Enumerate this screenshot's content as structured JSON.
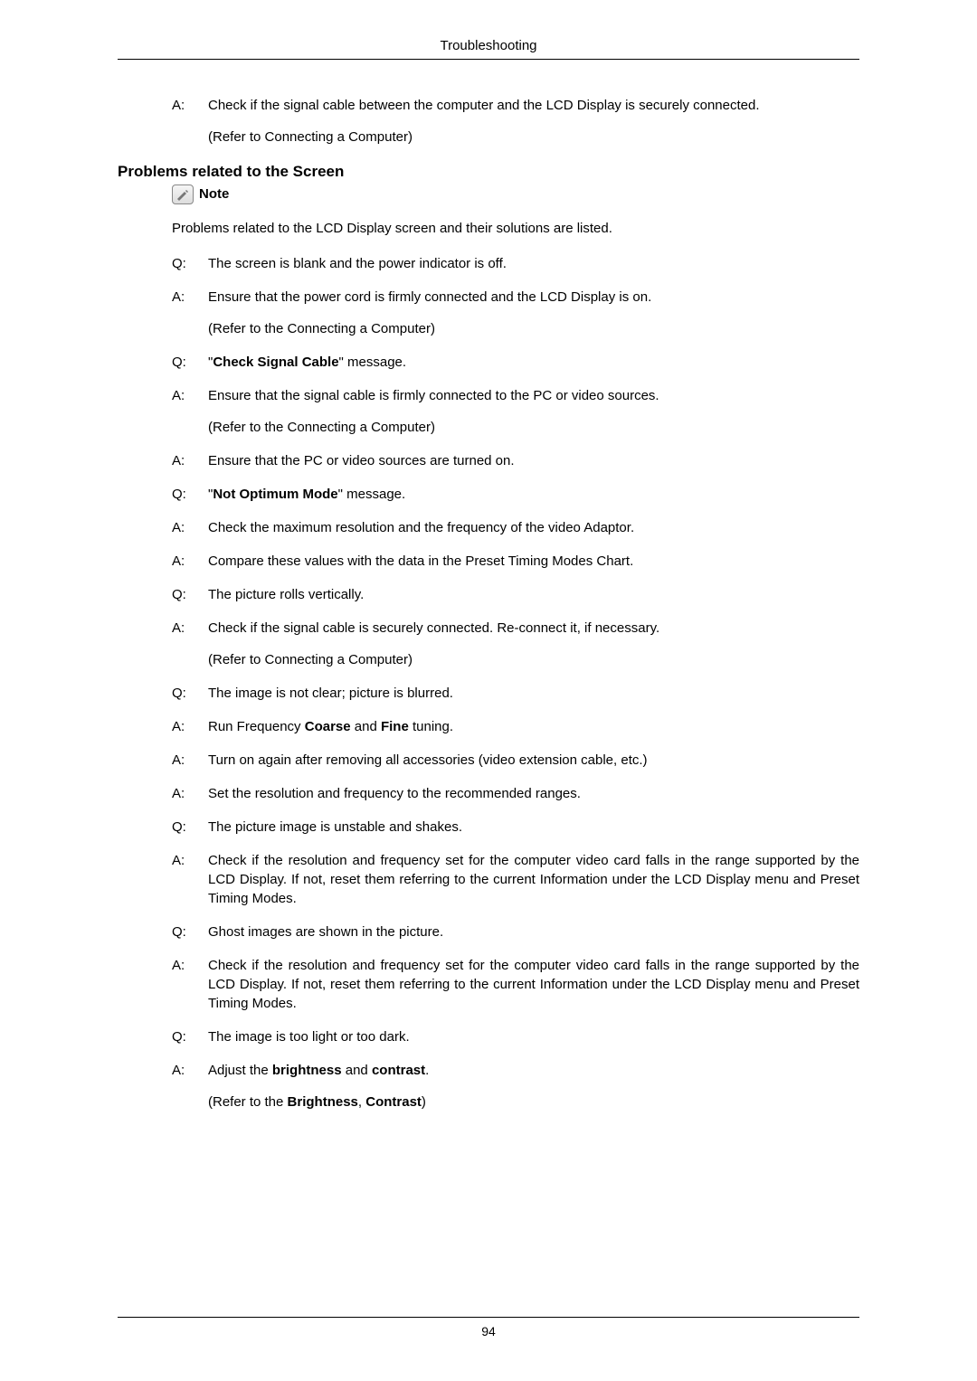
{
  "header": "Troubleshooting",
  "top_a": {
    "label": "A:",
    "line1": "Check if the signal cable between the computer and the LCD Display is securely connected.",
    "line2": "(Refer to Connecting a Computer)"
  },
  "section_title": "Problems related to the Screen",
  "note_label": "Note",
  "intro": "Problems related to the LCD Display screen and their solutions are listed.",
  "items": [
    {
      "label": "Q:",
      "text": "The screen is blank and the power indicator is off."
    },
    {
      "label": "A:",
      "text": "Ensure that the power cord is firmly connected and the LCD Display is on.",
      "sub": "(Refer to the Connecting a Computer)"
    },
    {
      "label": "Q:",
      "html": "\"<b>Check Signal Cable</b>\" message."
    },
    {
      "label": "A:",
      "text": "Ensure that the signal cable is firmly connected to the PC or video sources.",
      "sub": "(Refer to the Connecting a Computer)"
    },
    {
      "label": "A:",
      "text": "Ensure that the PC or video sources are turned on."
    },
    {
      "label": "Q:",
      "html": "\"<b>Not Optimum Mode</b>\" message."
    },
    {
      "label": "A:",
      "text": "Check the maximum resolution and the frequency of the video Adaptor."
    },
    {
      "label": "A:",
      "text": "Compare these values with the data in the Preset Timing Modes Chart."
    },
    {
      "label": "Q:",
      "text": "The picture rolls vertically."
    },
    {
      "label": "A:",
      "text": "Check if the signal cable is securely connected. Re-connect it, if necessary.",
      "sub": "(Refer to Connecting a Computer)"
    },
    {
      "label": "Q:",
      "text": "The image is not clear; picture is blurred."
    },
    {
      "label": "A:",
      "html": "Run Frequency <b>Coarse</b> and <b>Fine</b> tuning."
    },
    {
      "label": "A:",
      "text": "Turn on again after removing all accessories (video extension cable, etc.)"
    },
    {
      "label": "A:",
      "text": "Set the resolution and frequency to the recommended ranges."
    },
    {
      "label": "Q:",
      "text": "The picture image is unstable and shakes."
    },
    {
      "label": "A:",
      "text": "Check if the resolution and frequency set for the computer video card falls in the range supported by the LCD Display. If not, reset them referring to the current Information under the LCD Display menu and Preset Timing Modes.",
      "justify": true
    },
    {
      "label": "Q:",
      "text": "Ghost images are shown in the picture."
    },
    {
      "label": "A:",
      "text": "Check if the resolution and frequency set for the computer video card falls in the range supported by the LCD Display. If not, reset them referring to the current Information under the LCD Display menu and Preset Timing Modes.",
      "justify": true
    },
    {
      "label": "Q:",
      "text": "The image is too light or too dark."
    },
    {
      "label": "A:",
      "html": "Adjust the <b>brightness</b> and <b>contrast</b>.",
      "sub_html": "(Refer to the <b>Brightness</b>, <b>Contrast</b>)"
    }
  ],
  "page_number": "94"
}
